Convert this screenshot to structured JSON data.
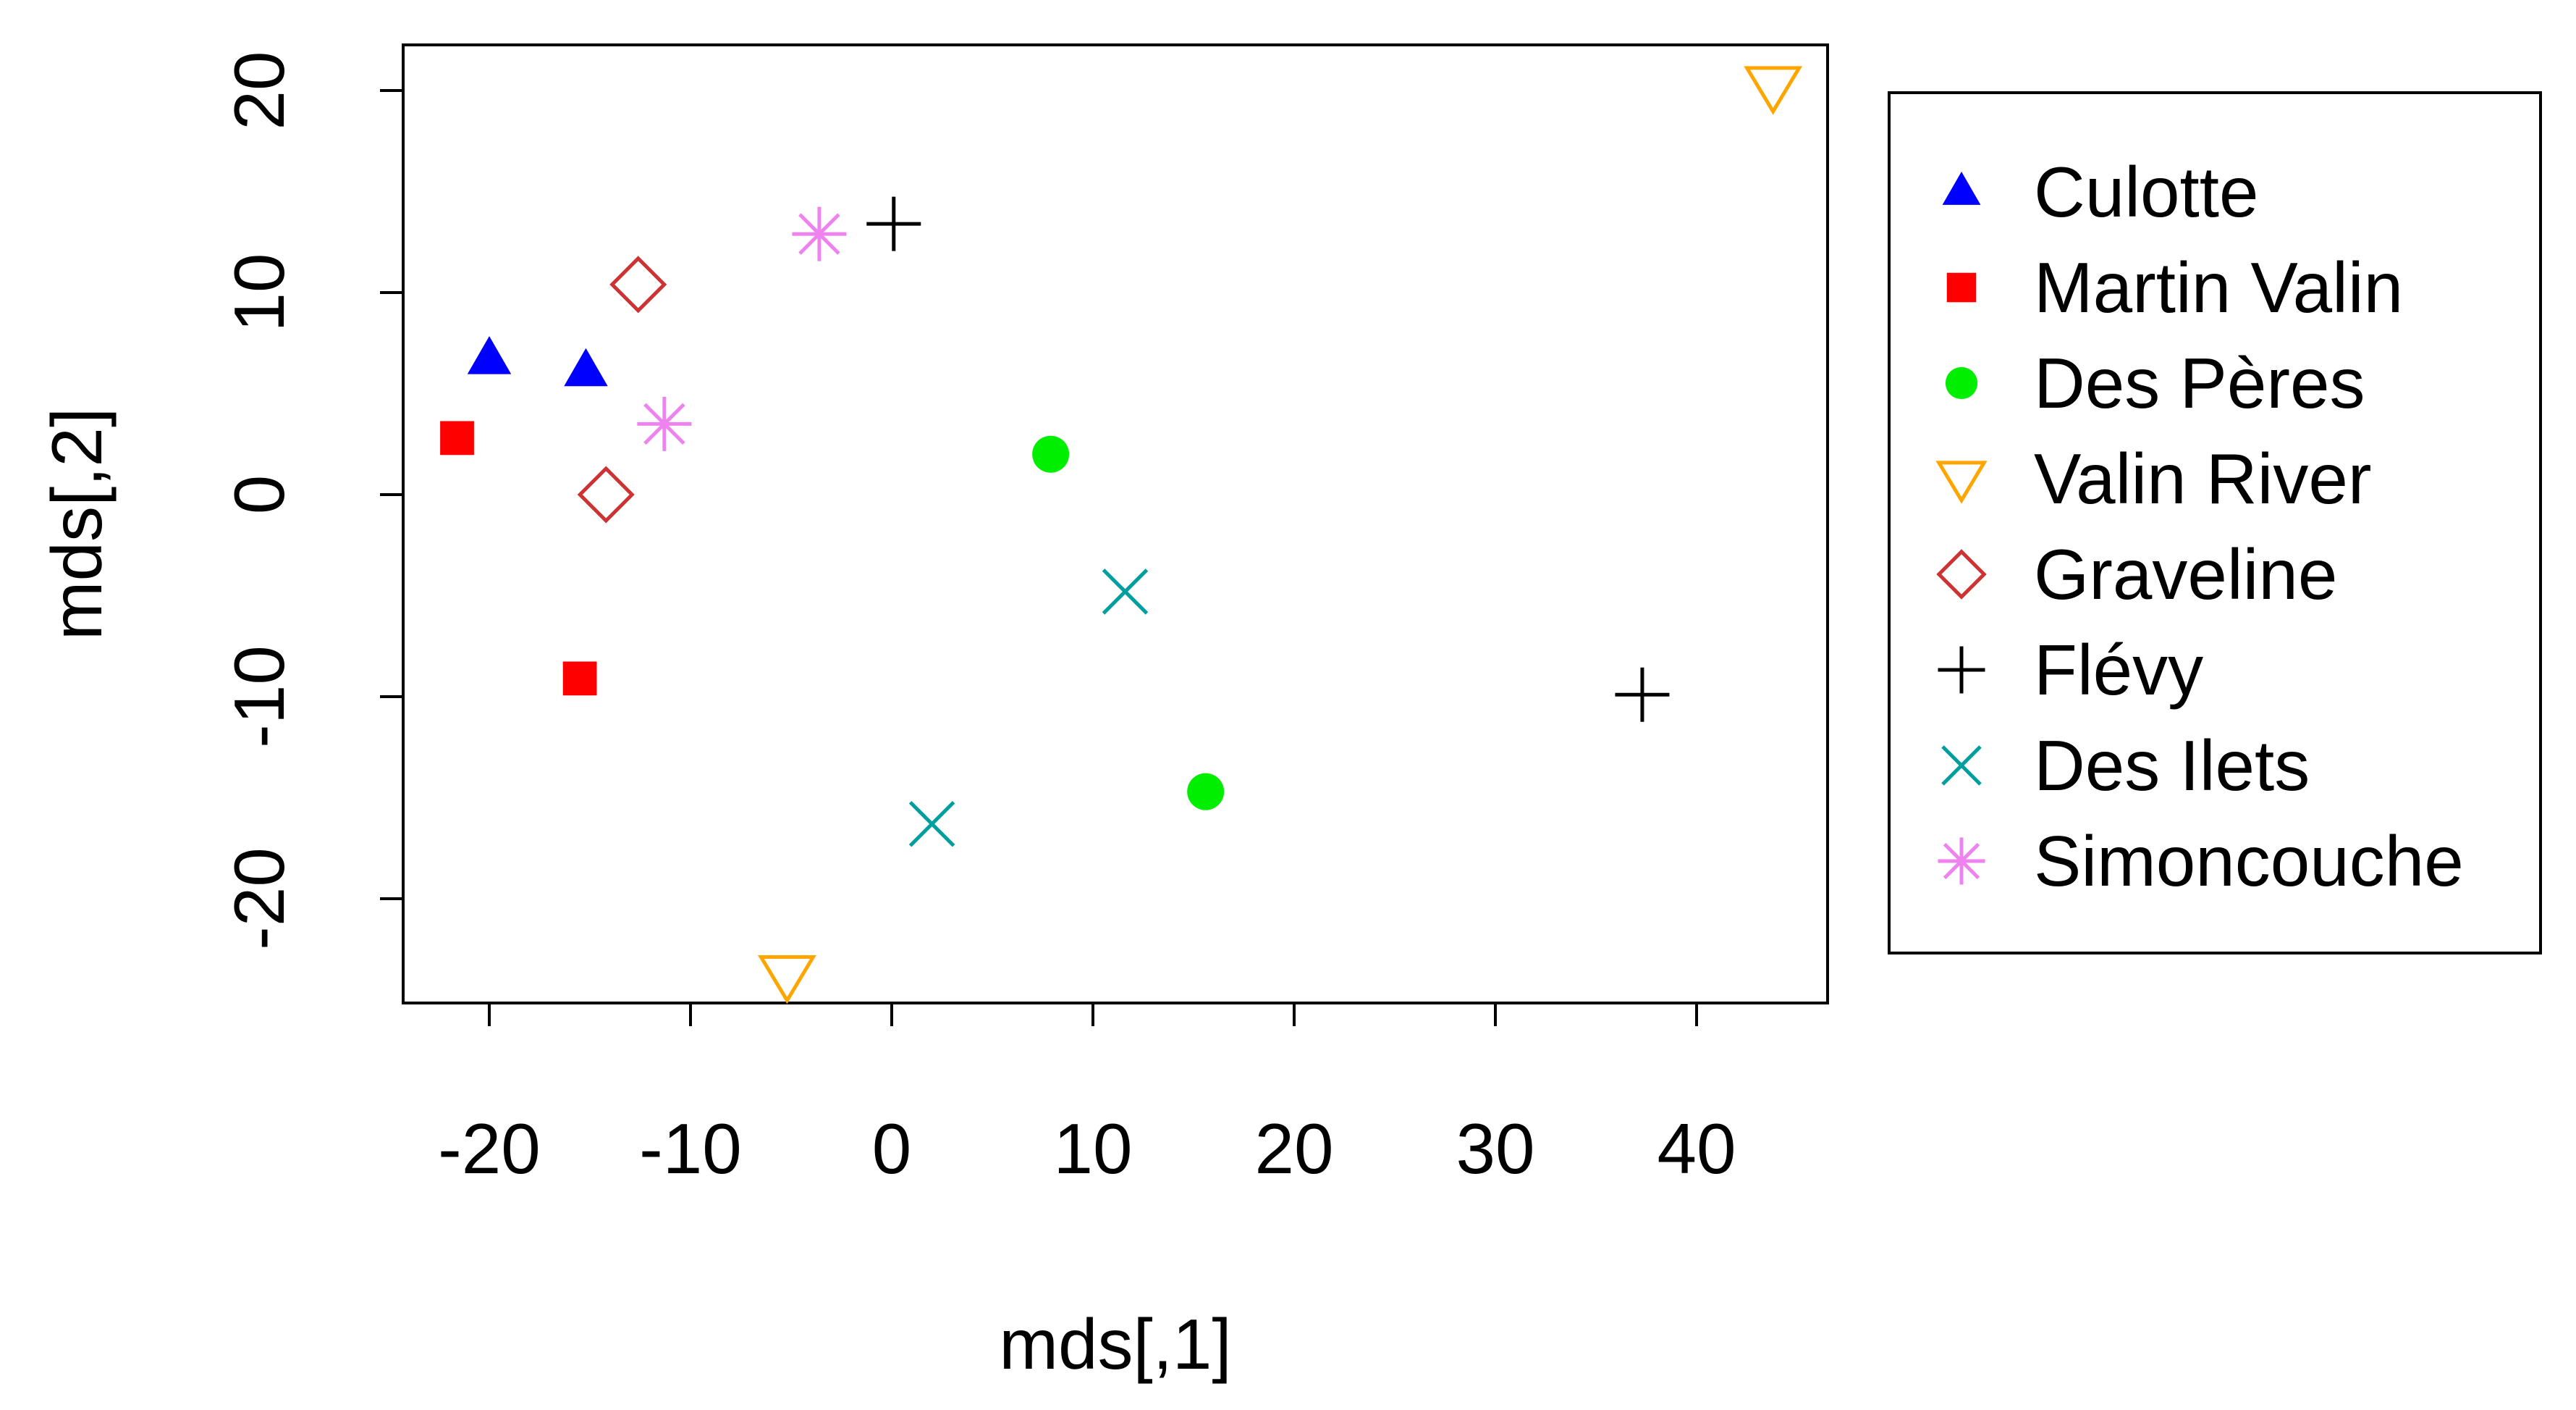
{
  "chart_data": {
    "type": "scatter",
    "title": "",
    "xlabel": "mds[,1]",
    "ylabel": "mds[,2]",
    "xlim": [
      -24,
      47
    ],
    "ylim": [
      -25.5,
      22.5
    ],
    "xticks": [
      -20,
      -10,
      0,
      10,
      20,
      30,
      40
    ],
    "yticks": [
      -20,
      -10,
      0,
      10,
      20
    ],
    "xtick_labels": [
      "-20",
      "-10",
      "0",
      "10",
      "20",
      "30",
      "40"
    ],
    "ytick_labels": [
      "-20",
      "-10",
      "0",
      "10",
      "20"
    ],
    "grid": false,
    "legend_position": "right",
    "series": [
      {
        "name": "Culotte",
        "marker": "triangle-filled",
        "color": "#0000ff",
        "points": [
          {
            "x": -20,
            "y": 6.7
          },
          {
            "x": -15.2,
            "y": 6.1
          }
        ]
      },
      {
        "name": "Martin Valin",
        "marker": "square-filled",
        "color": "#ff0000",
        "points": [
          {
            "x": -21.6,
            "y": 2.8
          },
          {
            "x": -15.5,
            "y": -9.1
          }
        ]
      },
      {
        "name": "Des Pères",
        "marker": "circle-filled",
        "color": "#00ee00",
        "points": [
          {
            "x": 7.9,
            "y": 2.0
          },
          {
            "x": 15.6,
            "y": -14.7
          }
        ]
      },
      {
        "name": "Valin River",
        "marker": "triangle-down-open",
        "color": "#ffa500",
        "points": [
          {
            "x": 43.8,
            "y": 20.2
          },
          {
            "x": -5.2,
            "y": -23.8
          }
        ]
      },
      {
        "name": "Graveline",
        "marker": "diamond-open",
        "color": "#cd3333",
        "points": [
          {
            "x": -12.6,
            "y": 10.4
          },
          {
            "x": -14.2,
            "y": 0.0
          }
        ]
      },
      {
        "name": "Flévy",
        "marker": "plus",
        "color": "#000000",
        "points": [
          {
            "x": 0.1,
            "y": 13.4
          },
          {
            "x": 37.3,
            "y": -9.9
          }
        ]
      },
      {
        "name": "Des Ilets",
        "marker": "cross",
        "color": "#009e9e",
        "points": [
          {
            "x": 11.6,
            "y": -4.8
          },
          {
            "x": 2.0,
            "y": -16.3
          }
        ]
      },
      {
        "name": "Simoncouche",
        "marker": "asterisk",
        "color": "#ee82ee",
        "points": [
          {
            "x": -3.6,
            "y": 12.9
          },
          {
            "x": -11.3,
            "y": 3.5
          }
        ]
      }
    ]
  }
}
